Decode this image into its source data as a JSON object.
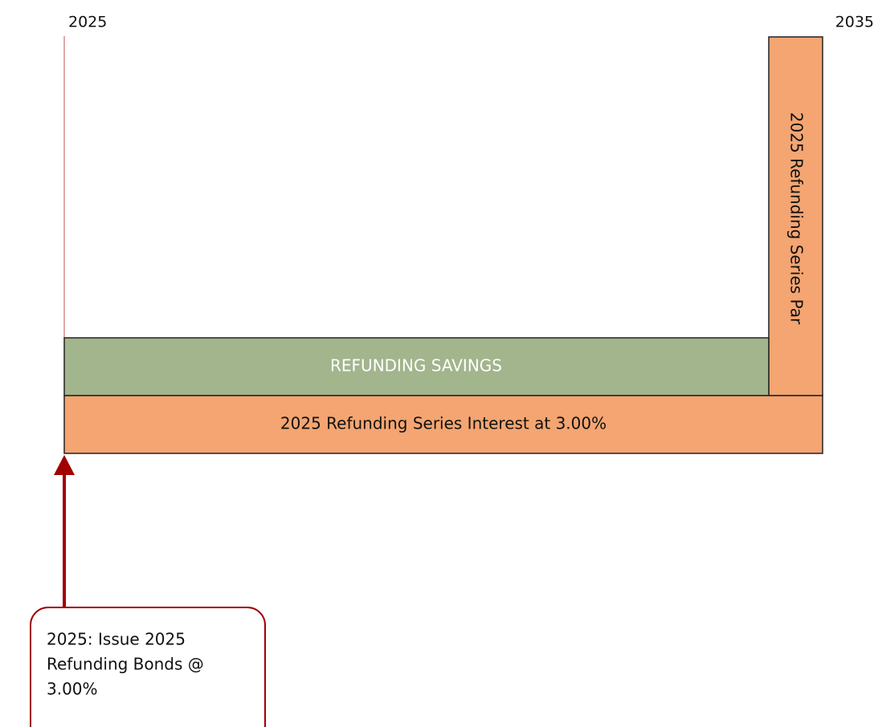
{
  "timeline": {
    "start_label": "2025",
    "end_label": "2035"
  },
  "blocks": {
    "savings": "REFUNDING SAVINGS",
    "interest": "2025 Refunding Series Interest at 3.00%",
    "par": "2025 Refunding Series Par"
  },
  "callout": {
    "lines": [
      "2025: Issue 2025",
      "Refunding Bonds @",
      "3.00%"
    ]
  }
}
